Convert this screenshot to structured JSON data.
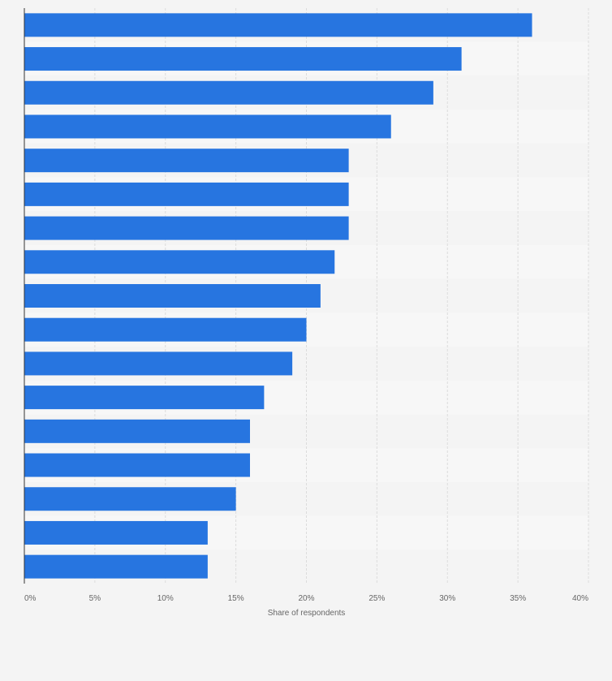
{
  "colors": {
    "bar": "#2775e0",
    "background": "#f4f4f4",
    "row_band": "#f7f7f7",
    "grid": "#dcdcdc",
    "axis": "#333333",
    "tick_text": "#666666"
  },
  "chart_data": {
    "type": "bar",
    "orientation": "horizontal",
    "title": "",
    "xlabel": "Share of respondents",
    "ylabel": "",
    "xlim": [
      0,
      40
    ],
    "x_ticks": [
      0,
      5,
      10,
      15,
      20,
      25,
      30,
      35,
      40
    ],
    "x_tick_labels": [
      "0%",
      "5%",
      "10%",
      "15%",
      "20%",
      "25%",
      "30%",
      "35%",
      "40%"
    ],
    "grid": true,
    "categories": [
      "",
      "",
      "",
      "",
      "",
      "",
      "",
      "",
      "",
      "",
      "",
      "",
      "",
      "",
      "",
      "",
      ""
    ],
    "values": [
      36,
      31,
      29,
      26,
      23,
      23,
      23,
      22,
      21,
      20,
      19,
      17,
      16,
      16,
      15,
      13,
      13
    ],
    "unit": "%"
  }
}
